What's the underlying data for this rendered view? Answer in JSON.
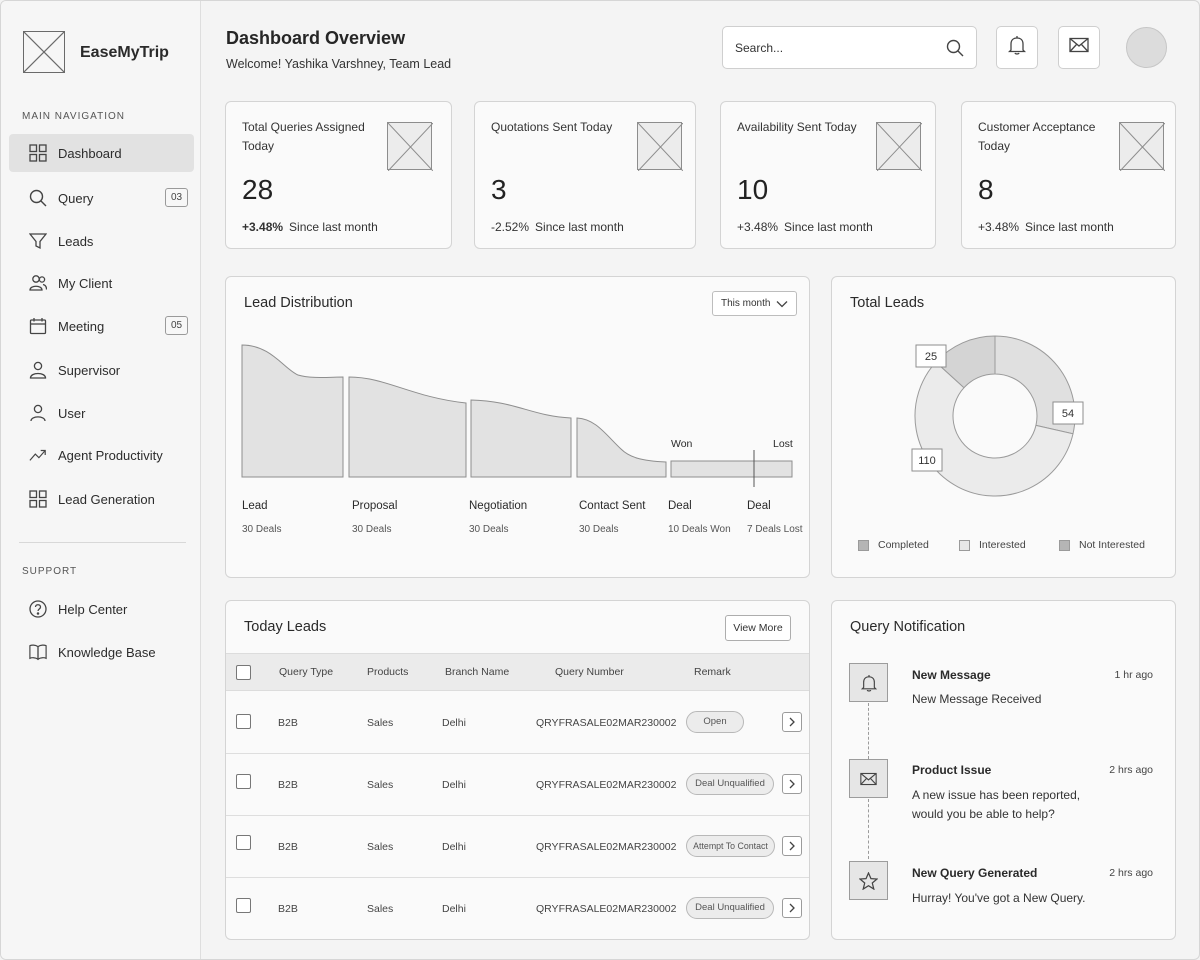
{
  "brand": {
    "name": "EaseMyTrip"
  },
  "sidebar": {
    "main_label": "MAIN NAVIGATION",
    "support_label": "SUPPORT",
    "items": [
      {
        "label": "Dashboard",
        "icon": "grid-icon",
        "active": true
      },
      {
        "label": "Query",
        "icon": "search-icon",
        "badge": "03"
      },
      {
        "label": "Leads",
        "icon": "funnel-icon"
      },
      {
        "label": "My Client",
        "icon": "users-icon"
      },
      {
        "label": "Meeting",
        "icon": "calendar-icon",
        "badge": "05"
      },
      {
        "label": "Supervisor",
        "icon": "person-icon"
      },
      {
        "label": "User",
        "icon": "user-icon"
      },
      {
        "label": "Agent Productivity",
        "icon": "trend-icon"
      },
      {
        "label": "Lead Generation",
        "icon": "grid-icon"
      }
    ],
    "support": [
      {
        "label": "Help Center",
        "icon": "help-icon"
      },
      {
        "label": "Knowledge Base",
        "icon": "book-icon"
      }
    ]
  },
  "header": {
    "title": "Dashboard Overview",
    "welcome": "Welcome! Yashika Varshney, Team Lead",
    "search_placeholder": "Search..."
  },
  "stats": [
    {
      "label": "Total Queries Assigned Today",
      "value": "28",
      "change": "+3.48%",
      "change_bold": true,
      "suffix": "Since last month"
    },
    {
      "label": "Quotations Sent Today",
      "value": "3",
      "change": "-2.52%",
      "change_bold": false,
      "suffix": "Since last month"
    },
    {
      "label": "Availability Sent Today",
      "value": "10",
      "change": "+3.48%",
      "change_bold": false,
      "suffix": "Since last month"
    },
    {
      "label": "Customer Acceptance Today",
      "value": "8",
      "change": "+3.48%",
      "change_bold": false,
      "suffix": "Since last month"
    }
  ],
  "lead_distribution": {
    "title": "Lead Distribution",
    "filter": "This month",
    "stages": [
      {
        "label": "Lead",
        "sub": "30 Deals"
      },
      {
        "label": "Proposal",
        "sub": "30 Deals"
      },
      {
        "label": "Negotiation",
        "sub": "30 Deals"
      },
      {
        "label": "Contact Sent",
        "sub": "30 Deals"
      },
      {
        "label": "Deal",
        "sub": "10 Deals Won"
      },
      {
        "label": "Deal",
        "sub": "7 Deals Lost"
      }
    ],
    "won_label": "Won",
    "lost_label": "Lost"
  },
  "total_leads": {
    "title": "Total Leads",
    "values": [
      {
        "label": "Completed",
        "value": 25,
        "color": "#d4d4d4"
      },
      {
        "label": "Interested",
        "value": 110,
        "color": "#ebebeb"
      },
      {
        "label": "Not Interested",
        "value": 54,
        "color": "#e0e0e0"
      }
    ],
    "legend_colors": [
      "#b5b5b5",
      "#e8e8e8",
      "#b5b5b5"
    ]
  },
  "today_leads": {
    "title": "Today Leads",
    "view_more": "View More",
    "columns": [
      "Query Type",
      "Products",
      "Branch Name",
      "Query Number",
      "Remark"
    ],
    "rows": [
      {
        "type": "B2B",
        "product": "Sales",
        "branch": "Delhi",
        "number": "QRYFRASALE02MAR230002",
        "remark": "Open"
      },
      {
        "type": "B2B",
        "product": "Sales",
        "branch": "Delhi",
        "number": "QRYFRASALE02MAR230002",
        "remark": "Deal Unqualified"
      },
      {
        "type": "B2B",
        "product": "Sales",
        "branch": "Delhi",
        "number": "QRYFRASALE02MAR230002",
        "remark": "Attempt To Contact"
      },
      {
        "type": "B2B",
        "product": "Sales",
        "branch": "Delhi",
        "number": "QRYFRASALE02MAR230002",
        "remark": "Deal Unqualified"
      }
    ]
  },
  "notifications": {
    "title": "Query Notification",
    "items": [
      {
        "title": "New Message",
        "time": "1 hr ago",
        "body": "New Message Received",
        "icon": "bell-icon"
      },
      {
        "title": "Product Issue",
        "time": "2 hrs ago",
        "body": "A new issue has been reported, would you be able to help?",
        "icon": "mail-icon"
      },
      {
        "title": "New Query Generated",
        "time": "2 hrs ago",
        "body": "Hurray! You've got a New Query.",
        "icon": "star-icon"
      }
    ]
  }
}
